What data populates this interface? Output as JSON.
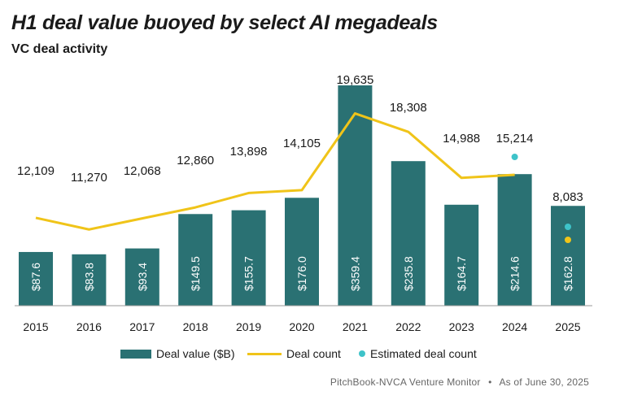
{
  "header": {
    "title": "H1 deal value buoyed by select AI megadeals",
    "subtitle": "VC deal activity"
  },
  "colors": {
    "bar": "#2a7173",
    "line": "#f0c419",
    "estimate": "#3ec3c9",
    "axis": "#9a9a9a"
  },
  "chart_data": {
    "type": "bar",
    "title": "H1 deal value buoyed by select AI megadeals",
    "subtitle": "VC deal activity",
    "categories": [
      "2015",
      "2016",
      "2017",
      "2018",
      "2019",
      "2020",
      "2021",
      "2022",
      "2023",
      "2024",
      "2025"
    ],
    "bar_series": {
      "name": "Deal value ($B)",
      "values": [
        87.6,
        83.8,
        93.4,
        149.5,
        155.7,
        176.0,
        359.4,
        235.8,
        164.7,
        214.6,
        162.8
      ],
      "labels": [
        "$87.6",
        "$83.8",
        "$93.4",
        "$149.5",
        "$155.7",
        "$176.0",
        "$359.4",
        "$235.8",
        "$164.7",
        "$214.6",
        "$162.8"
      ]
    },
    "line_series": {
      "name": "Deal count",
      "values": [
        12109,
        11270,
        12068,
        12860,
        13898,
        14105,
        19635,
        18308,
        14988,
        15214,
        null
      ],
      "labels": [
        "12,109",
        "11,270",
        "12,068",
        "12,860",
        "13,898",
        "14,105",
        "19,635",
        "18,308",
        "14,988",
        "15,214",
        "8,083"
      ]
    },
    "estimated_series": {
      "name": "Estimated deal count",
      "points": [
        {
          "category": "2024",
          "kind": "estimate"
        },
        {
          "category": "2025",
          "kind": "estimate"
        },
        {
          "category": "2025",
          "kind": "count"
        }
      ]
    },
    "legend": [
      "Deal value ($B)",
      "Deal count",
      "Estimated deal count"
    ],
    "legend_position": "bottom",
    "grid": false
  },
  "footer": {
    "source": "PitchBook-NVCA Venture Monitor",
    "separator": "•",
    "as_of": "As of June 30, 2025"
  }
}
